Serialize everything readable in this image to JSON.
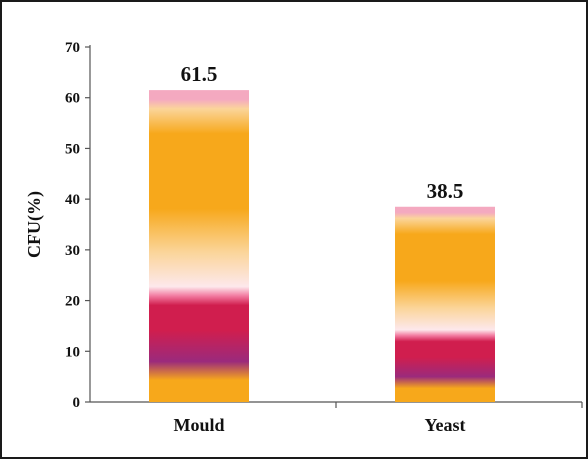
{
  "chart_data": {
    "type": "bar",
    "categories": [
      "Mould",
      "Yeast"
    ],
    "values": [
      61.5,
      38.5
    ],
    "data_labels": [
      "61.5",
      "38.5"
    ],
    "title": "",
    "xlabel": "",
    "ylabel": "CFU(%)",
    "ylim": [
      0,
      70
    ],
    "yticks": [
      0,
      10,
      20,
      30,
      40,
      50,
      60,
      70
    ],
    "ytick_labels": [
      "0",
      "10",
      "20",
      "30",
      "40",
      "50",
      "60",
      "70"
    ],
    "grid": false,
    "legend": "none",
    "bar_fill": "vertical multicolor gradient (orange, pink, crimson, purple)",
    "colors": {
      "orange": "#f7a81b",
      "light_orange": "#fbd59a",
      "pale_pink": "#fde8ec",
      "pink": "#f27aa0",
      "crimson": "#d01e4e",
      "purple": "#9b2a7c",
      "top_pink": "#f4a9c0"
    }
  }
}
